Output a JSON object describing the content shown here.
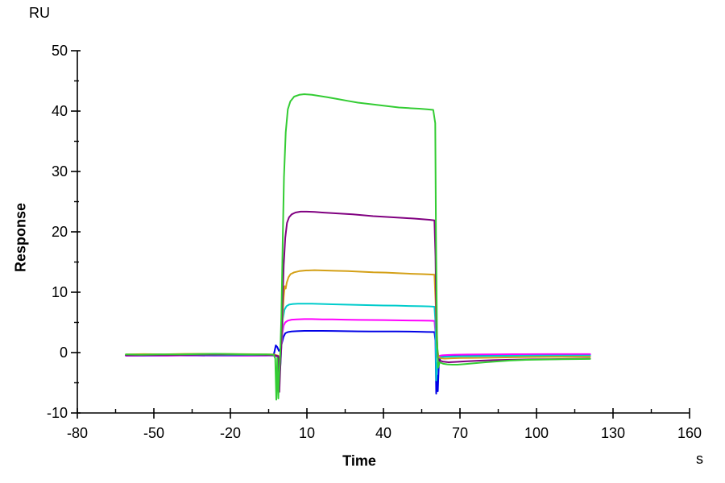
{
  "figure": {
    "y_unit": "RU",
    "x_unit": "s",
    "x_title": "Time",
    "y_title": "Response"
  },
  "chart_data": {
    "type": "line",
    "title": "",
    "xlabel": "Time",
    "xlabel_unit": "s",
    "ylabel": "Response",
    "ylabel_unit": "RU",
    "xlim": [
      -80,
      160
    ],
    "ylim": [
      -10,
      50
    ],
    "x_major_ticks": [
      -80,
      -50,
      -20,
      10,
      40,
      70,
      100,
      130,
      160
    ],
    "x_minor_ticks": [
      -65,
      -35,
      -5,
      25,
      55,
      85,
      115,
      145
    ],
    "y_major_ticks": [
      -10,
      0,
      10,
      20,
      30,
      40,
      50
    ],
    "y_minor_ticks": [
      -5,
      5,
      15,
      25,
      35,
      45
    ],
    "grid": false,
    "legend": "none",
    "phases": {
      "baseline_start_s": -61,
      "association_start_s": 0,
      "dissociation_start_s": 60,
      "data_end_s": 121
    },
    "series": [
      {
        "name": "green",
        "color": "#33CC33",
        "plateau_RU": 42.8,
        "points": [
          [
            -61,
            -0.3
          ],
          [
            -55,
            -0.35
          ],
          [
            -48,
            -0.3
          ],
          [
            -40,
            -0.3
          ],
          [
            -33,
            -0.25
          ],
          [
            -26,
            -0.2
          ],
          [
            -19,
            -0.25
          ],
          [
            -12,
            -0.3
          ],
          [
            -6,
            -0.3
          ],
          [
            -3,
            -0.35
          ],
          [
            -2.4,
            -1.0
          ],
          [
            -2.0,
            -7.8
          ],
          [
            -1.6,
            -0.9
          ],
          [
            -1.2,
            -7.6
          ],
          [
            -0.9,
            -4.0
          ],
          [
            -0.5,
            -0.5
          ],
          [
            0,
            6
          ],
          [
            0.5,
            18
          ],
          [
            1,
            29
          ],
          [
            1.7,
            36.5
          ],
          [
            2.5,
            40.3
          ],
          [
            3.5,
            41.6
          ],
          [
            5,
            42.4
          ],
          [
            7,
            42.7
          ],
          [
            9,
            42.8
          ],
          [
            12,
            42.7
          ],
          [
            15,
            42.5
          ],
          [
            18,
            42.3
          ],
          [
            22,
            42.0
          ],
          [
            26,
            41.7
          ],
          [
            30,
            41.4
          ],
          [
            34,
            41.2
          ],
          [
            38,
            41.0
          ],
          [
            42,
            40.8
          ],
          [
            46,
            40.6
          ],
          [
            50,
            40.5
          ],
          [
            54,
            40.4
          ],
          [
            57,
            40.3
          ],
          [
            59.5,
            40.2
          ],
          [
            60.3,
            38
          ],
          [
            60.6,
            20
          ],
          [
            61,
            3
          ],
          [
            61.4,
            -2.5
          ],
          [
            62,
            -1.6
          ],
          [
            63.5,
            -1.85
          ],
          [
            65,
            -1.95
          ],
          [
            67,
            -2.0
          ],
          [
            69,
            -2.0
          ],
          [
            72,
            -1.9
          ],
          [
            76,
            -1.75
          ],
          [
            80,
            -1.6
          ],
          [
            85,
            -1.45
          ],
          [
            90,
            -1.3
          ],
          [
            96,
            -1.2
          ],
          [
            103,
            -1.15
          ],
          [
            110,
            -1.1
          ],
          [
            121,
            -1.05
          ]
        ]
      },
      {
        "name": "purple",
        "color": "#800080",
        "plateau_RU": 23.3,
        "points": [
          [
            -61,
            -0.45
          ],
          [
            -53,
            -0.4
          ],
          [
            -45,
            -0.42
          ],
          [
            -37,
            -0.38
          ],
          [
            -29,
            -0.35
          ],
          [
            -21,
            -0.33
          ],
          [
            -13,
            -0.35
          ],
          [
            -7,
            -0.38
          ],
          [
            -3,
            -0.42
          ],
          [
            -1.2,
            -0.6
          ],
          [
            -0.8,
            -6.5
          ],
          [
            -0.5,
            -3.0
          ],
          [
            -0.1,
            0.5
          ],
          [
            0.4,
            8
          ],
          [
            0.9,
            14.5
          ],
          [
            1.5,
            19
          ],
          [
            2.2,
            21.5
          ],
          [
            3,
            22.4
          ],
          [
            4,
            22.9
          ],
          [
            5.5,
            23.2
          ],
          [
            7.5,
            23.35
          ],
          [
            10,
            23.35
          ],
          [
            13,
            23.3
          ],
          [
            16,
            23.2
          ],
          [
            20,
            23.1
          ],
          [
            24,
            23.0
          ],
          [
            28,
            22.9
          ],
          [
            32,
            22.75
          ],
          [
            36,
            22.6
          ],
          [
            40,
            22.5
          ],
          [
            44,
            22.4
          ],
          [
            48,
            22.3
          ],
          [
            52,
            22.2
          ],
          [
            55,
            22.1
          ],
          [
            58,
            22.0
          ],
          [
            60,
            21.9
          ],
          [
            60.4,
            16
          ],
          [
            60.8,
            4
          ],
          [
            61.3,
            -0.9
          ],
          [
            62,
            -1.3
          ],
          [
            63.5,
            -1.5
          ],
          [
            65.5,
            -1.6
          ],
          [
            68,
            -1.55
          ],
          [
            72,
            -1.45
          ],
          [
            77,
            -1.35
          ],
          [
            83,
            -1.25
          ],
          [
            90,
            -1.18
          ],
          [
            98,
            -1.12
          ],
          [
            107,
            -1.08
          ],
          [
            121,
            -1.0
          ]
        ]
      },
      {
        "name": "gold",
        "color": "#D4A017",
        "plateau_RU": 13.6,
        "points": [
          [
            -61,
            -0.3
          ],
          [
            -54,
            -0.25
          ],
          [
            -46,
            -0.28
          ],
          [
            -38,
            -0.22
          ],
          [
            -30,
            -0.2
          ],
          [
            -22,
            -0.22
          ],
          [
            -14,
            -0.25
          ],
          [
            -7,
            -0.28
          ],
          [
            -3,
            -0.3
          ],
          [
            -1.2,
            -0.5
          ],
          [
            -0.6,
            -1.6
          ],
          [
            -0.1,
            0.6
          ],
          [
            0.4,
            5.5
          ],
          [
            0.9,
            9.2
          ],
          [
            1.3,
            11.0
          ],
          [
            1.7,
            10.6
          ],
          [
            2.1,
            11.6
          ],
          [
            2.8,
            12.5
          ],
          [
            3.6,
            13.0
          ],
          [
            5,
            13.3
          ],
          [
            7,
            13.5
          ],
          [
            9.5,
            13.6
          ],
          [
            13,
            13.65
          ],
          [
            17,
            13.6
          ],
          [
            21,
            13.55
          ],
          [
            26,
            13.5
          ],
          [
            31,
            13.4
          ],
          [
            36,
            13.3
          ],
          [
            41,
            13.25
          ],
          [
            46,
            13.15
          ],
          [
            51,
            13.05
          ],
          [
            55,
            13.0
          ],
          [
            58,
            12.95
          ],
          [
            60,
            12.9
          ],
          [
            60.5,
            8
          ],
          [
            61,
            1
          ],
          [
            61.6,
            -0.7
          ],
          [
            62.5,
            -0.95
          ],
          [
            64,
            -1.0
          ],
          [
            66.5,
            -0.95
          ],
          [
            70,
            -0.9
          ],
          [
            75,
            -0.88
          ],
          [
            81,
            -0.85
          ],
          [
            88,
            -0.8
          ],
          [
            96,
            -0.75
          ],
          [
            105,
            -0.72
          ],
          [
            121,
            -0.7
          ]
        ]
      },
      {
        "name": "cyan",
        "color": "#00CCCC",
        "plateau_RU": 8.1,
        "points": [
          [
            -61,
            -0.4
          ],
          [
            -53,
            -0.42
          ],
          [
            -45,
            -0.4
          ],
          [
            -37,
            -0.38
          ],
          [
            -29,
            -0.4
          ],
          [
            -21,
            -0.42
          ],
          [
            -13,
            -0.4
          ],
          [
            -7,
            -0.42
          ],
          [
            -3,
            -0.45
          ],
          [
            -1.4,
            -0.6
          ],
          [
            -0.7,
            -3.9
          ],
          [
            -0.3,
            -1.5
          ],
          [
            0.1,
            2
          ],
          [
            0.6,
            5.6
          ],
          [
            1.2,
            7.1
          ],
          [
            2,
            7.7
          ],
          [
            3,
            7.95
          ],
          [
            4.5,
            8.05
          ],
          [
            6.5,
            8.1
          ],
          [
            9,
            8.1
          ],
          [
            12,
            8.1
          ],
          [
            16,
            8.05
          ],
          [
            20,
            8.0
          ],
          [
            25,
            7.95
          ],
          [
            30,
            7.9
          ],
          [
            35,
            7.85
          ],
          [
            40,
            7.8
          ],
          [
            45,
            7.78
          ],
          [
            50,
            7.72
          ],
          [
            55,
            7.68
          ],
          [
            58,
            7.65
          ],
          [
            60,
            7.6
          ],
          [
            60.4,
            5
          ],
          [
            60.7,
            -4.6
          ],
          [
            61.1,
            -2.0
          ],
          [
            61.6,
            -0.85
          ],
          [
            62.5,
            -0.75
          ],
          [
            64,
            -0.7
          ],
          [
            67,
            -0.65
          ],
          [
            71,
            -0.62
          ],
          [
            77,
            -0.58
          ],
          [
            84,
            -0.55
          ],
          [
            92,
            -0.53
          ],
          [
            101,
            -0.51
          ],
          [
            110,
            -0.5
          ],
          [
            121,
            -0.5
          ]
        ]
      },
      {
        "name": "magenta",
        "color": "#FF00FF",
        "plateau_RU": 5.5,
        "points": [
          [
            -61,
            -0.5
          ],
          [
            -53,
            -0.48
          ],
          [
            -45,
            -0.5
          ],
          [
            -37,
            -0.45
          ],
          [
            -29,
            -0.45
          ],
          [
            -21,
            -0.48
          ],
          [
            -13,
            -0.5
          ],
          [
            -7,
            -0.5
          ],
          [
            -3,
            -0.52
          ],
          [
            -1.2,
            -0.7
          ],
          [
            -0.6,
            -1.9
          ],
          [
            -0.1,
            0.3
          ],
          [
            0.4,
            3.2
          ],
          [
            0.9,
            4.5
          ],
          [
            1.5,
            5.0
          ],
          [
            2.5,
            5.3
          ],
          [
            4,
            5.45
          ],
          [
            6,
            5.5
          ],
          [
            9,
            5.55
          ],
          [
            12,
            5.55
          ],
          [
            16,
            5.5
          ],
          [
            20,
            5.5
          ],
          [
            25,
            5.45
          ],
          [
            30,
            5.42
          ],
          [
            35,
            5.4
          ],
          [
            40,
            5.38
          ],
          [
            45,
            5.35
          ],
          [
            50,
            5.32
          ],
          [
            55,
            5.3
          ],
          [
            58,
            5.28
          ],
          [
            60,
            5.25
          ],
          [
            60.5,
            2.8
          ],
          [
            61,
            -0.75
          ],
          [
            61.8,
            -0.55
          ],
          [
            63,
            -0.45
          ],
          [
            65,
            -0.4
          ],
          [
            68,
            -0.35
          ],
          [
            73,
            -0.32
          ],
          [
            79,
            -0.3
          ],
          [
            86,
            -0.28
          ],
          [
            95,
            -0.27
          ],
          [
            105,
            -0.26
          ],
          [
            121,
            -0.25
          ]
        ]
      },
      {
        "name": "blue",
        "color": "#0000E6",
        "plateau_RU": 3.6,
        "points": [
          [
            -61,
            -0.5
          ],
          [
            -54,
            -0.52
          ],
          [
            -47,
            -0.5
          ],
          [
            -40,
            -0.48
          ],
          [
            -33,
            -0.48
          ],
          [
            -26,
            -0.5
          ],
          [
            -19,
            -0.5
          ],
          [
            -12,
            -0.5
          ],
          [
            -6,
            -0.48
          ],
          [
            -3,
            -0.4
          ],
          [
            -2.2,
            1.2
          ],
          [
            -1.6,
            0.9
          ],
          [
            -1.0,
            0.3
          ],
          [
            -0.4,
            0.6
          ],
          [
            0.2,
            1.6
          ],
          [
            0.8,
            2.6
          ],
          [
            1.5,
            3.2
          ],
          [
            2.5,
            3.4
          ],
          [
            4,
            3.5
          ],
          [
            6,
            3.55
          ],
          [
            9,
            3.6
          ],
          [
            12,
            3.6
          ],
          [
            16,
            3.6
          ],
          [
            20,
            3.58
          ],
          [
            25,
            3.55
          ],
          [
            30,
            3.52
          ],
          [
            35,
            3.5
          ],
          [
            40,
            3.5
          ],
          [
            45,
            3.5
          ],
          [
            50,
            3.48
          ],
          [
            54,
            3.45
          ],
          [
            57,
            3.42
          ],
          [
            60,
            3.4
          ],
          [
            60.4,
            2
          ],
          [
            60.7,
            -6.8
          ],
          [
            61.0,
            -3.8
          ],
          [
            61.3,
            -6.4
          ],
          [
            61.7,
            -2.2
          ],
          [
            62.3,
            -0.8
          ],
          [
            63.5,
            -0.55
          ],
          [
            65,
            -0.5
          ],
          [
            68,
            -0.45
          ],
          [
            72,
            -0.42
          ],
          [
            78,
            -0.4
          ],
          [
            85,
            -0.38
          ],
          [
            93,
            -0.36
          ],
          [
            102,
            -0.34
          ],
          [
            112,
            -0.32
          ],
          [
            121,
            -0.3
          ]
        ]
      }
    ]
  }
}
